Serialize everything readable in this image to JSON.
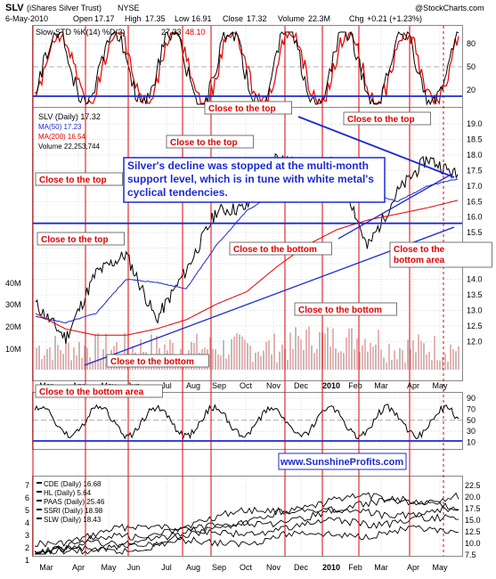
{
  "header": {
    "symbol": "SLV",
    "name": "(iShares Silver Trust)",
    "exchange": "NYSE",
    "watermark": "@StockCharts.com",
    "date": "6-May-2010",
    "open_label": "Open",
    "open": "17.17",
    "high_label": "High",
    "high": "17.35",
    "low_label": "Low",
    "low": "16.91",
    "close_label": "Close",
    "close": "17.32",
    "volume_label": "Volume",
    "volume": "22.3M",
    "chg_label": "Chg",
    "chg": "+0.21 (+1.23%)"
  },
  "stoch": {
    "title": "Slow STD %K(14) %D(3)",
    "k": "27.33",
    "d": "48.10",
    "ticks": [
      "80",
      "50",
      "20"
    ]
  },
  "main_legend": {
    "price": "SLV (Daily) 17.32",
    "ma50": "MA(50) 17.23",
    "ma200": "MA(200) 16.54",
    "volume": "Volume 22,253,744"
  },
  "price_ticks": [
    "19.0",
    "18.5",
    "18.0",
    "17.5",
    "17.0",
    "16.5",
    "16.0",
    "15.5",
    "15.0",
    "14.5",
    "14.0",
    "13.5",
    "13.0",
    "12.5",
    "12.0"
  ],
  "volume_ticks": [
    "40M",
    "30M",
    "20M",
    "10M"
  ],
  "annotations": {
    "callout": "Silver's decline was stopped at the multi-month support level, which is in tune with white metal's cyclical tendencies.",
    "labels": [
      "Close to the top",
      "Close to the top",
      "Close to the top",
      "Close to the top",
      "Close to the top",
      "Close to the bottom",
      "Close to the bottom",
      "Close to the bottom",
      "Close to the bottom",
      "Close to the bottom area"
    ]
  },
  "rsi": {
    "ticks": [
      "90",
      "70",
      "50",
      "30",
      "10"
    ]
  },
  "website": "www.SunshineProfits.com",
  "miners": {
    "legend": [
      "CDE (Daily) 16.68",
      "HL (Daily) 5.64",
      "PAAS (Daily) 25.46",
      "SSRI (Daily) 18.98",
      "SLW (Daily) 18.43"
    ],
    "left_ticks": [
      "7",
      "6",
      "5",
      "4",
      "3",
      "2",
      "1"
    ],
    "right_ticks": [
      "22.5",
      "20.0",
      "17.5",
      "15.0",
      "12.5",
      "10.0",
      "7.5"
    ]
  },
  "x_labels": [
    "Mar",
    "Apr",
    "May",
    "Jun",
    "Jul",
    "Aug",
    "Sep",
    "Oct",
    "Nov",
    "Dec",
    "2010",
    "Feb",
    "Mar",
    "Apr",
    "May"
  ],
  "chart_data": {
    "type": "line",
    "title": "SLV (iShares Silver Trust) NYSE",
    "x": [
      "2009-03",
      "2009-04",
      "2009-05",
      "2009-06",
      "2009-07",
      "2009-08",
      "2009-09",
      "2009-10",
      "2009-11",
      "2009-12",
      "2010-01",
      "2010-02",
      "2010-03",
      "2010-04",
      "2010-05"
    ],
    "series": [
      {
        "name": "SLV (Daily)",
        "values": [
          13.2,
          12.1,
          14.2,
          14.8,
          12.7,
          14.3,
          16.2,
          16.3,
          18.0,
          17.5,
          17.8,
          15.0,
          16.8,
          17.9,
          17.32
        ]
      },
      {
        "name": "MA(50)",
        "values": [
          12.8,
          12.6,
          12.9,
          14.0,
          13.9,
          13.7,
          15.1,
          16.2,
          16.8,
          17.9,
          17.5,
          16.8,
          16.5,
          17.0,
          17.23
        ]
      },
      {
        "name": "MA(200)",
        "values": [
          12.9,
          12.4,
          12.2,
          12.2,
          12.4,
          12.7,
          13.2,
          13.6,
          14.4,
          15.1,
          15.6,
          15.9,
          16.1,
          16.3,
          16.54
        ]
      }
    ],
    "ylim": [
      11.6,
      19.3
    ],
    "volume_latest": 22253744,
    "stoch_k_latest": 27.33,
    "stoch_d_latest": 48.1,
    "support_level": 15.8
  }
}
